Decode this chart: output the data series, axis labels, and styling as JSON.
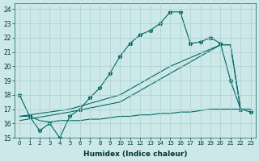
{
  "xlabel": "Humidex (Indice chaleur)",
  "bg_color": "#cce8e8",
  "grid_color": "#aad0d0",
  "line_color": "#006666",
  "xlim": [
    -0.5,
    23.5
  ],
  "ylim": [
    15,
    24.4
  ],
  "yticks": [
    15,
    16,
    17,
    18,
    19,
    20,
    21,
    22,
    23,
    24
  ],
  "xticks": [
    0,
    1,
    2,
    3,
    4,
    5,
    6,
    7,
    8,
    9,
    10,
    11,
    12,
    13,
    14,
    15,
    16,
    17,
    18,
    19,
    20,
    21,
    22,
    23
  ],
  "series": [
    {
      "x": [
        0,
        1,
        2,
        3,
        4,
        5,
        6,
        7,
        8,
        9,
        10,
        11,
        12,
        13,
        14,
        15,
        16,
        17,
        18,
        19,
        20,
        21,
        22,
        23
      ],
      "y": [
        18,
        16.5,
        15.5,
        16,
        15,
        16.5,
        17,
        17.8,
        18.5,
        19.5,
        20.7,
        21.6,
        22.2,
        22.5,
        23.0,
        23.8,
        23.8,
        21.6,
        21.7,
        22.0,
        21.6,
        19.0,
        17.0,
        16.8
      ],
      "marker": true
    },
    {
      "x": [
        0,
        1,
        2,
        3,
        4,
        5,
        6,
        7,
        8,
        9,
        10,
        11,
        12,
        13,
        14,
        15,
        16,
        17,
        18,
        19,
        20,
        21,
        22,
        23
      ],
      "y": [
        16.5,
        16.5,
        16.2,
        16.1,
        16.2,
        16.2,
        16.2,
        16.3,
        16.3,
        16.4,
        16.5,
        16.5,
        16.6,
        16.6,
        16.7,
        16.7,
        16.8,
        16.8,
        16.9,
        17.0,
        17.0,
        17.0,
        17.0,
        17.0
      ],
      "marker": false
    },
    {
      "x": [
        0,
        5,
        10,
        15,
        20,
        21,
        22,
        23
      ],
      "y": [
        16.5,
        17.0,
        18.0,
        20.0,
        21.5,
        21.5,
        17.0,
        17.0
      ],
      "marker": false
    },
    {
      "x": [
        0,
        5,
        10,
        15,
        20,
        21,
        22,
        23
      ],
      "y": [
        16.2,
        16.8,
        17.5,
        19.5,
        21.5,
        21.5,
        17.0,
        17.0
      ],
      "marker": false
    }
  ]
}
